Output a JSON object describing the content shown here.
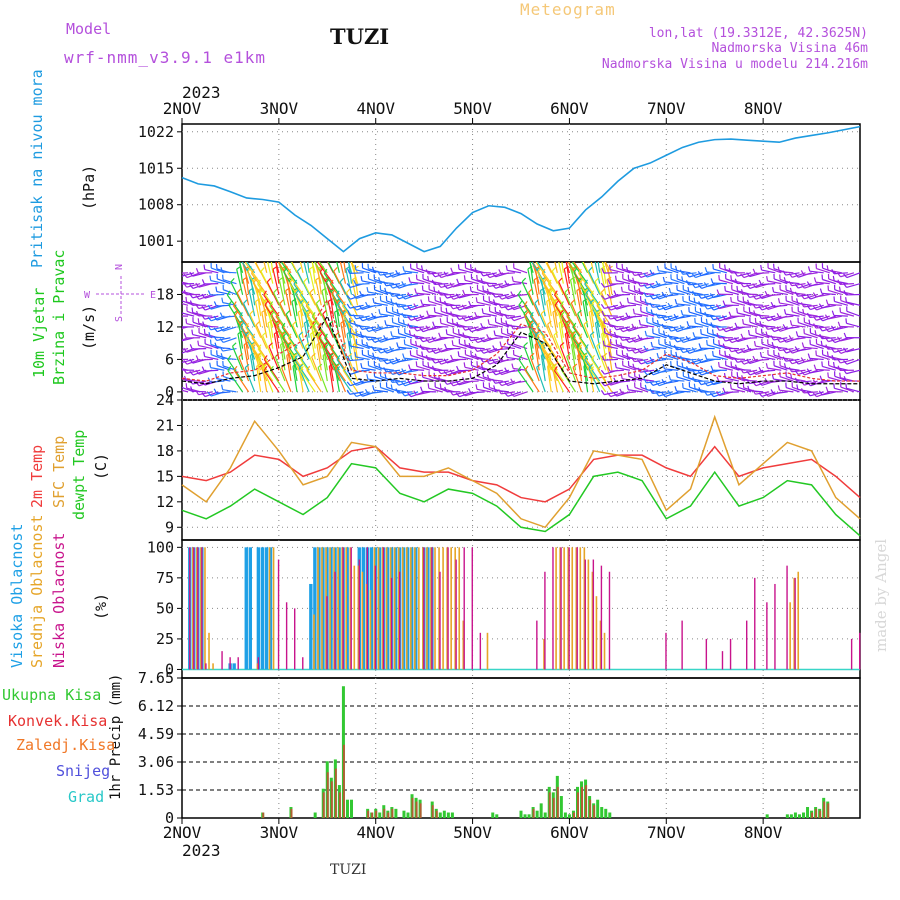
{
  "header": {
    "model_label": "Model",
    "model_name": "wrf-nmm_v3.9.1 e1km",
    "station": "TUZI",
    "product": "Meteogram",
    "lonlat": "lon,lat (19.3312E, 42.3625N)",
    "elevation": "Nadmorska Visina 46m",
    "model_elevation": "Nadmorska Visina u modelu 214.216m"
  },
  "footer": {
    "station": "TUZI",
    "credit": "made by Angel"
  },
  "time_axis": {
    "year": "2023",
    "ticks": [
      "2NOV",
      "3NOV",
      "4NOV",
      "5NOV",
      "6NOV",
      "7NOV",
      "8NOV"
    ]
  },
  "colors": {
    "pressure": "#1e9be0",
    "temp2m": "#f03c3c",
    "sfc_temp": "#e0a030",
    "dewpt": "#23c823",
    "high_cloud": "#1ea0e6",
    "mid_cloud": "#e6a528",
    "low_cloud": "#c8148c",
    "total_precip": "#32c832",
    "conv_precip": "#e63232",
    "frozen_precip": "#f07828",
    "snow": "#5050dc",
    "graupel": "#28c8c8",
    "wind_label": "#1ec81e",
    "wind_dir": "#b450dc"
  },
  "panels": {
    "pressure": {
      "ylabel_main": "Pritisak na nivou mora",
      "ylabel_unit": "(hPa)",
      "ticks": [
        "1001",
        "1008",
        "1015",
        "1022"
      ]
    },
    "wind": {
      "ylabel_main1": "10m Vjetar",
      "ylabel_main2": "Brzina i Pravac",
      "ylabel_unit": "(m/s)",
      "ticks": [
        "0",
        "6",
        "12",
        "18"
      ],
      "compass": {
        "n": "N",
        "w": "W",
        "e": "E",
        "s": "S"
      }
    },
    "temperature": {
      "ylabel_t2": "2m Temp",
      "ylabel_sfc": "SFC Temp",
      "ylabel_dew": "dewpt Temp",
      "ylabel_unit": "(C)",
      "ticks": [
        "9",
        "12",
        "15",
        "18",
        "21",
        "24"
      ]
    },
    "cloud": {
      "ylabel_high": "Visoka Oblacnost",
      "ylabel_mid": "Srednja Oblacnost",
      "ylabel_low": "Niska Oblacnost",
      "ylabel_unit": "(%)",
      "ticks": [
        "0",
        "25",
        "50",
        "75",
        "100"
      ]
    },
    "precip": {
      "ylabel": "1hr Precip (mm)",
      "ticks": [
        "0",
        "1.53",
        "3.06",
        "4.59",
        "6.12",
        "7.65"
      ],
      "legend": [
        "Ukupna Kisa",
        "Konvek.Kisa",
        "Zaledj.Kisa",
        "Snijeg",
        "Grad"
      ]
    }
  },
  "chart_data": [
    {
      "type": "line",
      "title": "",
      "ylabel": "Pritisak na nivou mora (hPa)",
      "ylim": [
        997,
        1023.5
      ],
      "x": [
        0,
        4,
        8,
        12,
        16,
        20,
        24,
        28,
        32,
        36,
        40,
        44,
        48,
        52,
        56,
        60,
        64,
        68,
        72,
        76,
        80,
        84,
        88,
        92,
        96,
        100,
        104,
        108,
        112,
        116,
        120,
        124,
        128,
        132,
        136,
        140,
        144,
        148,
        152,
        156,
        160,
        164,
        168
      ],
      "series": [
        {
          "name": "",
          "values": [
            1013.2,
            1012.0,
            1011.6,
            1010.5,
            1009.3,
            1009.0,
            1008.5,
            1006.0,
            1004.0,
            1001.5,
            999.0,
            1001.5,
            1002.6,
            1002.2,
            1000.6,
            999.0,
            1000.0,
            1003.5,
            1006.5,
            1007.8,
            1007.5,
            1006.3,
            1004.3,
            1003.0,
            1003.5,
            1007.0,
            1009.5,
            1012.5,
            1015.0,
            1016.0,
            1017.5,
            1019.0,
            1020.0,
            1020.5,
            1020.6,
            1020.4,
            1020.2,
            1020.0,
            1020.8,
            1021.3,
            1021.8,
            1022.4,
            1023.0
          ]
        }
      ]
    },
    {
      "type": "line",
      "title": "",
      "ylabel": "10m Vjetar Brzina i Pravac (m/s)",
      "ylim": [
        -1.5,
        24
      ],
      "x": [
        0,
        6,
        12,
        18,
        24,
        30,
        36,
        42,
        48,
        54,
        60,
        66,
        72,
        78,
        84,
        90,
        96,
        102,
        108,
        114,
        120,
        126,
        132,
        138,
        144,
        150,
        156,
        162,
        168
      ],
      "series": [
        {
          "name": "",
          "values": [
            2.5,
            2.0,
            3.5,
            4.0,
            7.0,
            9.5,
            17.0,
            4.0,
            3.5,
            3.5,
            3.0,
            3.0,
            4.0,
            7.0,
            12.5,
            11.0,
            3.5,
            2.5,
            3.0,
            4.0,
            7.0,
            5.5,
            3.0,
            2.5,
            3.0,
            3.5,
            2.5,
            2.0,
            2.0
          ]
        },
        {
          "name": "",
          "values": [
            2.0,
            1.5,
            2.5,
            3.0,
            4.5,
            6.5,
            14.0,
            2.5,
            2.0,
            2.5,
            2.0,
            2.0,
            2.5,
            5.0,
            11.0,
            9.0,
            2.0,
            1.5,
            2.0,
            2.5,
            5.0,
            3.5,
            2.0,
            1.5,
            2.0,
            2.0,
            1.5,
            1.5,
            1.5
          ]
        }
      ],
      "directions": "barbs oriented mostly from SE / E during 2-3 NOV and 5 NOV (yellow/green coloring high speeds), N to NW elsewhere"
    },
    {
      "type": "line",
      "title": "",
      "ylabel": "Temp (C)",
      "ylim": [
        7.5,
        24
      ],
      "x": [
        0,
        6,
        12,
        18,
        24,
        30,
        36,
        42,
        48,
        54,
        60,
        66,
        72,
        78,
        84,
        90,
        96,
        102,
        108,
        114,
        120,
        126,
        132,
        138,
        144,
        150,
        156,
        162,
        168
      ],
      "series": [
        {
          "name": "2m Temp",
          "values": [
            15.0,
            14.5,
            15.5,
            17.5,
            17.0,
            15.0,
            16.0,
            18.0,
            18.5,
            16.0,
            15.5,
            15.5,
            14.5,
            14.0,
            12.5,
            12.0,
            13.5,
            17.0,
            17.5,
            17.5,
            16.0,
            15.0,
            18.5,
            15.0,
            16.0,
            16.5,
            17.0,
            15.0,
            12.5
          ]
        },
        {
          "name": "SFC Temp",
          "values": [
            14.0,
            12.0,
            16.0,
            21.5,
            18.0,
            14.0,
            15.0,
            19.0,
            18.5,
            15.0,
            15.0,
            16.0,
            14.5,
            13.0,
            10.0,
            9.0,
            12.5,
            18.0,
            17.5,
            17.0,
            11.0,
            13.5,
            22.0,
            14.0,
            16.5,
            19.0,
            18.0,
            12.5,
            10.0
          ]
        },
        {
          "name": "dewpt Temp",
          "values": [
            11.0,
            10.0,
            11.5,
            13.5,
            12.0,
            10.5,
            12.5,
            16.5,
            16.0,
            13.0,
            12.0,
            13.5,
            13.0,
            11.5,
            9.0,
            8.5,
            10.5,
            15.0,
            15.5,
            14.5,
            10.0,
            11.5,
            15.5,
            11.5,
            12.5,
            14.5,
            14.0,
            10.5,
            8.0
          ]
        }
      ]
    },
    {
      "type": "bar",
      "title": "",
      "ylabel": "Oblacnost (%)",
      "ylim": [
        0,
        100
      ],
      "series": [
        {
          "name": "Visoka Oblacnost",
          "x": [
            2,
            3,
            4,
            5,
            12,
            13,
            16,
            17,
            19,
            20,
            21,
            22,
            32,
            33,
            34,
            35,
            36,
            37,
            38,
            39,
            40,
            41,
            44,
            45,
            46,
            47,
            48,
            49,
            50,
            51,
            52,
            53,
            54,
            55,
            56,
            57,
            58,
            60,
            61,
            62
          ],
          "values": [
            100,
            100,
            100,
            100,
            5,
            5,
            100,
            100,
            100,
            100,
            100,
            100,
            70,
            100,
            100,
            100,
            100,
            100,
            100,
            100,
            100,
            100,
            100,
            100,
            100,
            100,
            100,
            100,
            100,
            100,
            100,
            100,
            100,
            100,
            100,
            100,
            100,
            100,
            100,
            100
          ]
        },
        {
          "name": "Srednja Oblacnost",
          "x": [
            2,
            3,
            4,
            5,
            6,
            7,
            18,
            21,
            22,
            32,
            33,
            34,
            35,
            36,
            37,
            38,
            39,
            40,
            41,
            42,
            43,
            44,
            45,
            46,
            47,
            48,
            49,
            50,
            51,
            52,
            53,
            54,
            55,
            56,
            57,
            58,
            59,
            60,
            61,
            62,
            63,
            64,
            65,
            66,
            67,
            68,
            69,
            75,
            89,
            92,
            93,
            94,
            95,
            96,
            97,
            98,
            99,
            100,
            101,
            102,
            103,
            104,
            150,
            151,
            152
          ],
          "values": [
            100,
            100,
            100,
            100,
            30,
            5,
            5,
            100,
            100,
            45,
            100,
            100,
            100,
            100,
            100,
            100,
            100,
            100,
            100,
            85,
            85,
            80,
            70,
            65,
            100,
            100,
            100,
            100,
            100,
            100,
            100,
            100,
            100,
            100,
            100,
            100,
            100,
            100,
            100,
            100,
            100,
            100,
            100,
            100,
            100,
            100,
            40,
            30,
            25,
            100,
            100,
            100,
            100,
            100,
            100,
            100,
            100,
            90,
            80,
            60,
            40,
            30,
            55,
            75,
            80
          ]
        },
        {
          "name": "Niska Oblacnost",
          "x": [
            2,
            3,
            4,
            5,
            6,
            10,
            12,
            14,
            19,
            24,
            26,
            28,
            30,
            36,
            38,
            40,
            42,
            44,
            46,
            48,
            50,
            52,
            54,
            60,
            62,
            64,
            66,
            68,
            70,
            72,
            74,
            88,
            90,
            92,
            94,
            96,
            98,
            100,
            102,
            104,
            106,
            120,
            124,
            130,
            134,
            136,
            140,
            142,
            145,
            147,
            150,
            152,
            166,
            168
          ],
          "values": [
            100,
            100,
            100,
            100,
            5,
            15,
            10,
            10,
            10,
            90,
            55,
            50,
            10,
            60,
            80,
            100,
            100,
            90,
            100,
            85,
            100,
            75,
            80,
            100,
            100,
            80,
            100,
            90,
            100,
            100,
            30,
            40,
            80,
            100,
            100,
            100,
            100,
            90,
            90,
            85,
            80,
            30,
            40,
            25,
            15,
            25,
            40,
            75,
            55,
            70,
            85,
            75,
            25,
            30
          ]
        }
      ]
    },
    {
      "type": "bar",
      "title": "",
      "ylabel": "1hr Precip (mm)",
      "ylim": [
        0,
        7.65
      ],
      "series": [
        {
          "name": "Ukupna Kisa",
          "x": [
            20,
            27,
            33,
            35,
            36,
            37,
            38,
            39,
            40,
            41,
            42,
            46,
            47,
            48,
            49,
            50,
            51,
            52,
            53,
            55,
            56,
            57,
            58,
            59,
            62,
            63,
            64,
            65,
            66,
            67,
            77,
            78,
            84,
            85,
            86,
            87,
            88,
            89,
            90,
            91,
            92,
            93,
            94,
            95,
            96,
            97,
            98,
            99,
            100,
            101,
            102,
            103,
            104,
            105,
            106,
            145,
            150,
            151,
            152,
            153,
            154,
            155,
            156,
            157,
            158,
            159,
            160
          ],
          "values": [
            0.3,
            0.6,
            0.3,
            1.6,
            3.1,
            2.2,
            3.2,
            1.8,
            7.2,
            1.0,
            1.0,
            0.5,
            0.3,
            0.5,
            0.3,
            0.7,
            0.4,
            0.6,
            0.5,
            0.4,
            0.3,
            1.3,
            1.1,
            1.0,
            0.9,
            0.5,
            0.3,
            0.4,
            0.3,
            0.3,
            0.3,
            0.2,
            0.4,
            0.2,
            0.2,
            0.6,
            0.4,
            0.8,
            0.3,
            1.7,
            1.4,
            2.3,
            1.2,
            0.3,
            0.2,
            0.4,
            1.7,
            2.0,
            2.1,
            1.2,
            0.8,
            1.0,
            0.6,
            0.5,
            0.3,
            0.2,
            0.2,
            0.2,
            0.3,
            0.2,
            0.3,
            0.6,
            0.4,
            0.6,
            0.5,
            1.1,
            0.9
          ]
        },
        {
          "name": "Konvek.Kisa",
          "x": [
            20,
            27,
            35,
            36,
            37,
            38,
            39,
            40,
            46,
            47,
            48,
            50,
            51,
            52,
            57,
            58,
            59,
            62,
            63,
            87,
            91,
            92,
            93,
            97,
            98,
            99,
            100,
            101,
            102,
            156,
            157,
            158,
            159,
            160
          ],
          "values": [
            0.3,
            0.5,
            1.4,
            2.5,
            2.0,
            2.7,
            1.4,
            4.0,
            0.4,
            0.3,
            0.4,
            0.5,
            0.3,
            0.5,
            1.1,
            0.9,
            0.8,
            0.7,
            0.4,
            0.5,
            1.4,
            1.1,
            1.7,
            0.3,
            1.4,
            1.7,
            1.8,
            1.0,
            0.7,
            0.3,
            0.5,
            0.4,
            0.9,
            0.8
          ]
        },
        {
          "name": "Zaledj.Kisa",
          "x": [],
          "values": []
        },
        {
          "name": "Snijeg",
          "x": [],
          "values": []
        },
        {
          "name": "Grad",
          "x": [],
          "values": []
        }
      ]
    }
  ]
}
